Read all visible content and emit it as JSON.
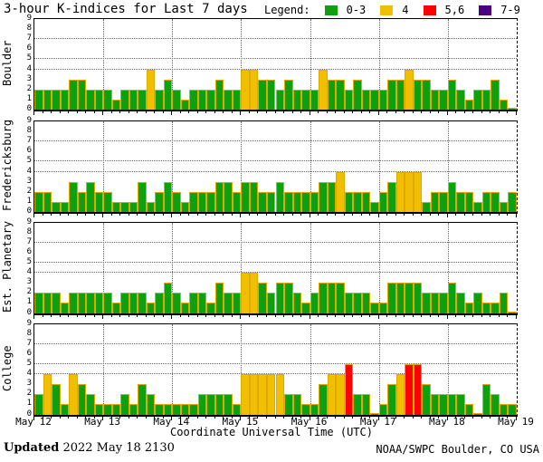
{
  "title": "3-hour K-indices for Last 7 days",
  "legend": {
    "label": "Legend:",
    "items": [
      {
        "label": "0-3",
        "color": "#0fa00f"
      },
      {
        "label": "4",
        "color": "#f0c000"
      },
      {
        "label": "5,6",
        "color": "#ff0000"
      },
      {
        "label": "7-9",
        "color": "#4b0082"
      }
    ]
  },
  "xlabel": "Coordinate Universal Time (UTC)",
  "footer": {
    "updated_bold": "Updated",
    "updated_rest": " 2022 May 18 2130",
    "credit": "NOAA/SWPC Boulder, CO USA"
  },
  "chart_data": {
    "type": "bar",
    "title": "3-hour K-indices for Last 7 days",
    "ylim": [
      0,
      9
    ],
    "y_ticks": [
      "0",
      "1",
      "2",
      "3",
      "4",
      "5",
      "6",
      "7",
      "8",
      "9"
    ],
    "threshold_lines": [
      4,
      5,
      7
    ],
    "x_tick_labels": [
      "May 12",
      "May 13",
      "May 14",
      "May 15",
      "May 16",
      "May 17",
      "May 18",
      "May 19"
    ],
    "bars_per_day": 8,
    "days": 7,
    "color_scale": {
      "0-3": "#0fa00f",
      "4": "#f0c000",
      "5-6": "#ff0000",
      "7-9": "#4b0082"
    },
    "bar_outline_color": "#dfa900",
    "panels": [
      {
        "station": "Boulder",
        "values": [
          2,
          2,
          2,
          2,
          3,
          3,
          2,
          2,
          2,
          1,
          2,
          2,
          2,
          4,
          2,
          3,
          2,
          1,
          2,
          2,
          2,
          3,
          2,
          2,
          4,
          4,
          3,
          3,
          2,
          3,
          2,
          2,
          2,
          4,
          3,
          3,
          2,
          3,
          2,
          2,
          2,
          3,
          3,
          4,
          3,
          3,
          2,
          2,
          3,
          2,
          1,
          2,
          2,
          3,
          1,
          0
        ]
      },
      {
        "station": "Fredericksburg",
        "values": [
          2,
          2,
          1,
          1,
          3,
          2,
          3,
          2,
          2,
          1,
          1,
          1,
          3,
          1,
          2,
          3,
          2,
          1,
          2,
          2,
          2,
          3,
          3,
          2,
          3,
          3,
          2,
          2,
          3,
          2,
          2,
          2,
          2,
          3,
          3,
          4,
          2,
          2,
          2,
          1,
          2,
          3,
          4,
          4,
          4,
          1,
          2,
          2,
          3,
          2,
          2,
          1,
          2,
          2,
          1,
          2
        ]
      },
      {
        "station": "Est. Planetary",
        "values": [
          2,
          2,
          2,
          1,
          2,
          2,
          2,
          2,
          2,
          1,
          2,
          2,
          2,
          1,
          2,
          3,
          2,
          1,
          2,
          2,
          1,
          3,
          2,
          2,
          4,
          4,
          3,
          2,
          3,
          3,
          2,
          1,
          2,
          3,
          3,
          3,
          2,
          2,
          2,
          1,
          1,
          3,
          3,
          3,
          3,
          2,
          2,
          2,
          3,
          2,
          1,
          2,
          1,
          1,
          2,
          0
        ]
      },
      {
        "station": "College",
        "values": [
          2,
          4,
          3,
          1,
          4,
          3,
          2,
          1,
          1,
          1,
          2,
          1,
          3,
          2,
          1,
          1,
          1,
          1,
          1,
          2,
          2,
          2,
          2,
          1,
          4,
          4,
          4,
          4,
          4,
          2,
          2,
          1,
          1,
          3,
          4,
          4,
          5,
          2,
          2,
          0,
          1,
          3,
          4,
          5,
          5,
          3,
          2,
          2,
          2,
          2,
          1,
          0,
          3,
          2,
          1,
          1
        ]
      }
    ]
  }
}
